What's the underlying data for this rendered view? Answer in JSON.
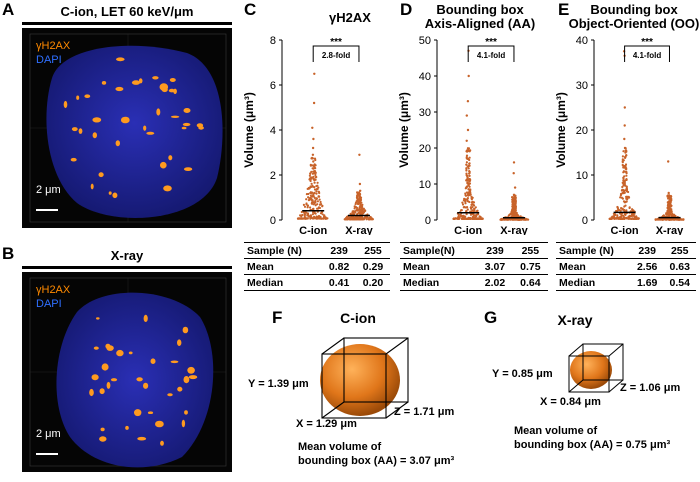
{
  "panels": {
    "A": {
      "label": "A",
      "title": "C-ion, LET 60 keV/μm",
      "legend_gh2ax": "γH2AX",
      "legend_dapi": "DAPI",
      "scale_bar": "2 μm"
    },
    "B": {
      "label": "B",
      "title": "X-ray",
      "legend_gh2ax": "γH2AX",
      "legend_dapi": "DAPI",
      "scale_bar": "2 μm"
    },
    "F": {
      "label": "F",
      "title": "C-ion",
      "y_dim": "Y = 1.39 μm",
      "x_dim": "X = 1.29 μm",
      "z_dim": "Z = 1.71 μm",
      "note_line1": "Mean volume of",
      "note_line2": "bounding box (AA) = 3.07 μm³"
    },
    "G": {
      "label": "G",
      "title": "X-ray",
      "y_dim": "Y = 0.85 μm",
      "x_dim": "X = 0.84 μm",
      "z_dim": "Z = 1.06 μm",
      "note_line1": "Mean volume of",
      "note_line2": "bounding box (AA) = 0.75 μm³"
    }
  },
  "colors": {
    "dot": "#c8632a",
    "nucleus": "#1b1f9a",
    "foci": "#ff9a1f",
    "dapi_text": "#2f6fff",
    "gh2ax_text": "#ff8a00"
  },
  "chart_data": [
    {
      "panel": "C",
      "type": "scatter",
      "title": "γH2AX",
      "ylabel": "Volume (μm³)",
      "ylim": [
        0,
        8
      ],
      "yticks": [
        "0",
        "2",
        "4",
        "6",
        "8"
      ],
      "yticks_values": [
        0,
        2,
        4,
        6,
        8
      ],
      "categories": [
        "C-ion",
        "X-ray"
      ],
      "significance": "***",
      "fold": "2.8-fold",
      "series": [
        {
          "name": "C-ion",
          "max": 6.5,
          "median": 0.41,
          "mean": 0.82,
          "values": [
            6.5,
            5.2,
            4.1,
            3.6,
            3.2,
            2.9,
            2.6,
            2.4
          ]
        },
        {
          "name": "X-ray",
          "max": 2.9,
          "median": 0.2,
          "mean": 0.29,
          "values": [
            2.9,
            1.6,
            1.3,
            1.15,
            1.05
          ]
        }
      ],
      "table": {
        "headers": [
          "Sample (N)",
          "Mean",
          "Median"
        ],
        "rows": [
          [
            "Sample (N)",
            "239",
            "255"
          ],
          [
            "Mean",
            "0.82",
            "0.29"
          ],
          [
            "Median",
            "0.41",
            "0.20"
          ]
        ]
      }
    },
    {
      "panel": "D",
      "type": "scatter",
      "title_line1": "Bounding box",
      "title_line2": "Axis-Aligned (AA)",
      "ylabel": "Volume (μm³)",
      "ylim": [
        0,
        50
      ],
      "yticks": [
        "0",
        "10",
        "20",
        "30",
        "40",
        "50"
      ],
      "yticks_values": [
        0,
        10,
        20,
        30,
        40,
        50
      ],
      "categories": [
        "C-ion",
        "X-ray"
      ],
      "significance": "***",
      "fold": "4.1-fold",
      "series": [
        {
          "name": "C-ion",
          "max": 47,
          "median": 2.02,
          "mean": 3.07,
          "values": [
            47,
            40,
            33,
            29,
            25,
            22,
            19,
            17,
            15
          ]
        },
        {
          "name": "X-ray",
          "max": 16,
          "median": 0.64,
          "mean": 0.75,
          "values": [
            16,
            13,
            9,
            7,
            6
          ]
        }
      ],
      "table": {
        "rows": [
          [
            "Sample(N)",
            "239",
            "255"
          ],
          [
            "Mean",
            "3.07",
            "0.75"
          ],
          [
            "Median",
            "2.02",
            "0.64"
          ]
        ]
      }
    },
    {
      "panel": "E",
      "type": "scatter",
      "title_line1": "Bounding box",
      "title_line2": "Object-Oriented (OO)",
      "ylabel": "Volume (μm³)",
      "ylim": [
        0,
        40
      ],
      "yticks": [
        "0",
        "10",
        "20",
        "30",
        "40"
      ],
      "yticks_values": [
        0,
        10,
        20,
        30,
        40
      ],
      "categories": [
        "C-ion",
        "X-ray"
      ],
      "significance": "***",
      "fold": "4.1-fold",
      "series": [
        {
          "name": "C-ion",
          "max": 37.5,
          "median": 1.69,
          "mean": 2.56,
          "values": [
            37.5,
            36.5,
            25,
            21,
            18,
            16,
            14,
            12
          ]
        },
        {
          "name": "X-ray",
          "max": 13,
          "median": 0.54,
          "mean": 0.63,
          "values": [
            13,
            6,
            5,
            4
          ]
        }
      ],
      "table": {
        "rows": [
          [
            "Sample (N)",
            "239",
            "255"
          ],
          [
            "Mean",
            "2.56",
            "0.63"
          ],
          [
            "Median",
            "1.69",
            "0.54"
          ]
        ]
      }
    }
  ]
}
